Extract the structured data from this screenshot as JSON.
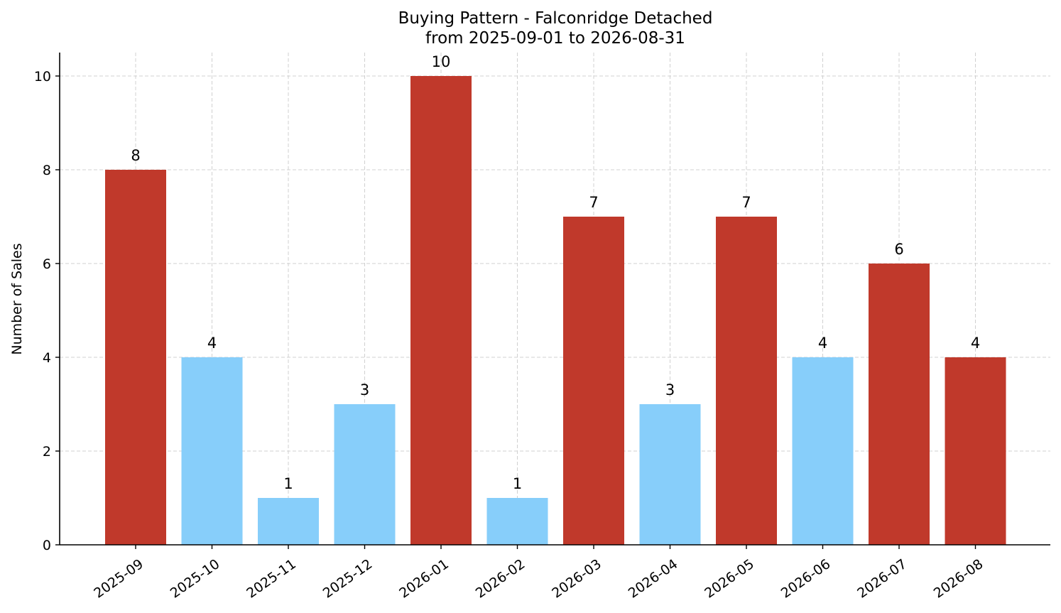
{
  "chart_data": {
    "type": "bar",
    "title": "Buying Pattern - Falconridge Detached",
    "subtitle": "from 2025-09-01 to 2026-08-31",
    "xlabel": "",
    "ylabel": "Number of Sales",
    "categories": [
      "2025-09",
      "2025-10",
      "2025-11",
      "2025-12",
      "2026-01",
      "2026-02",
      "2026-03",
      "2026-04",
      "2026-05",
      "2026-06",
      "2026-07",
      "2026-08"
    ],
    "values": [
      8,
      4,
      1,
      3,
      10,
      1,
      7,
      3,
      7,
      4,
      6,
      4
    ],
    "bar_colors": [
      "#c0392b",
      "#87cefa",
      "#87cefa",
      "#87cefa",
      "#c0392b",
      "#87cefa",
      "#c0392b",
      "#87cefa",
      "#c0392b",
      "#87cefa",
      "#c0392b",
      "#c0392b"
    ],
    "ylim": [
      0,
      10.5
    ],
    "yticks": [
      0,
      2,
      4,
      6,
      8,
      10
    ],
    "grid": true,
    "legend": false
  }
}
